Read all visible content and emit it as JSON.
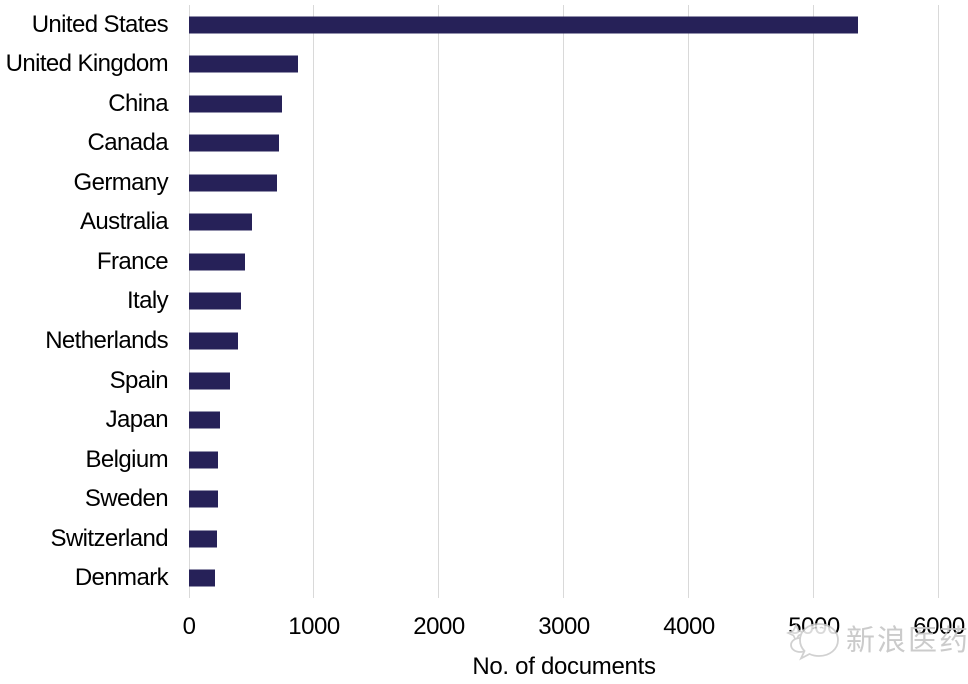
{
  "chart_data": {
    "type": "bar",
    "orientation": "horizontal",
    "title": "",
    "xlabel": "No. of documents",
    "ylabel": "",
    "categories": [
      "United States",
      "United Kingdom",
      "China",
      "Canada",
      "Germany",
      "Australia",
      "France",
      "Italy",
      "Netherlands",
      "Spain",
      "Japan",
      "Belgium",
      "Sweden",
      "Switzerland",
      "Denmark"
    ],
    "values": [
      5350,
      870,
      745,
      720,
      705,
      505,
      450,
      415,
      395,
      330,
      250,
      235,
      230,
      225,
      205
    ],
    "xlim": [
      0,
      6000
    ],
    "xticks": [
      0,
      1000,
      2000,
      3000,
      4000,
      5000,
      6000
    ],
    "grid": "vertical-gridlines-on",
    "legend": "none",
    "bar_color": "#262158",
    "gridline_color": "#d9d9d9",
    "label_color": "#000000"
  },
  "watermark": {
    "text": "新浪医药",
    "icon": "speech-bubble-icon",
    "color": "#c6c6c6"
  }
}
